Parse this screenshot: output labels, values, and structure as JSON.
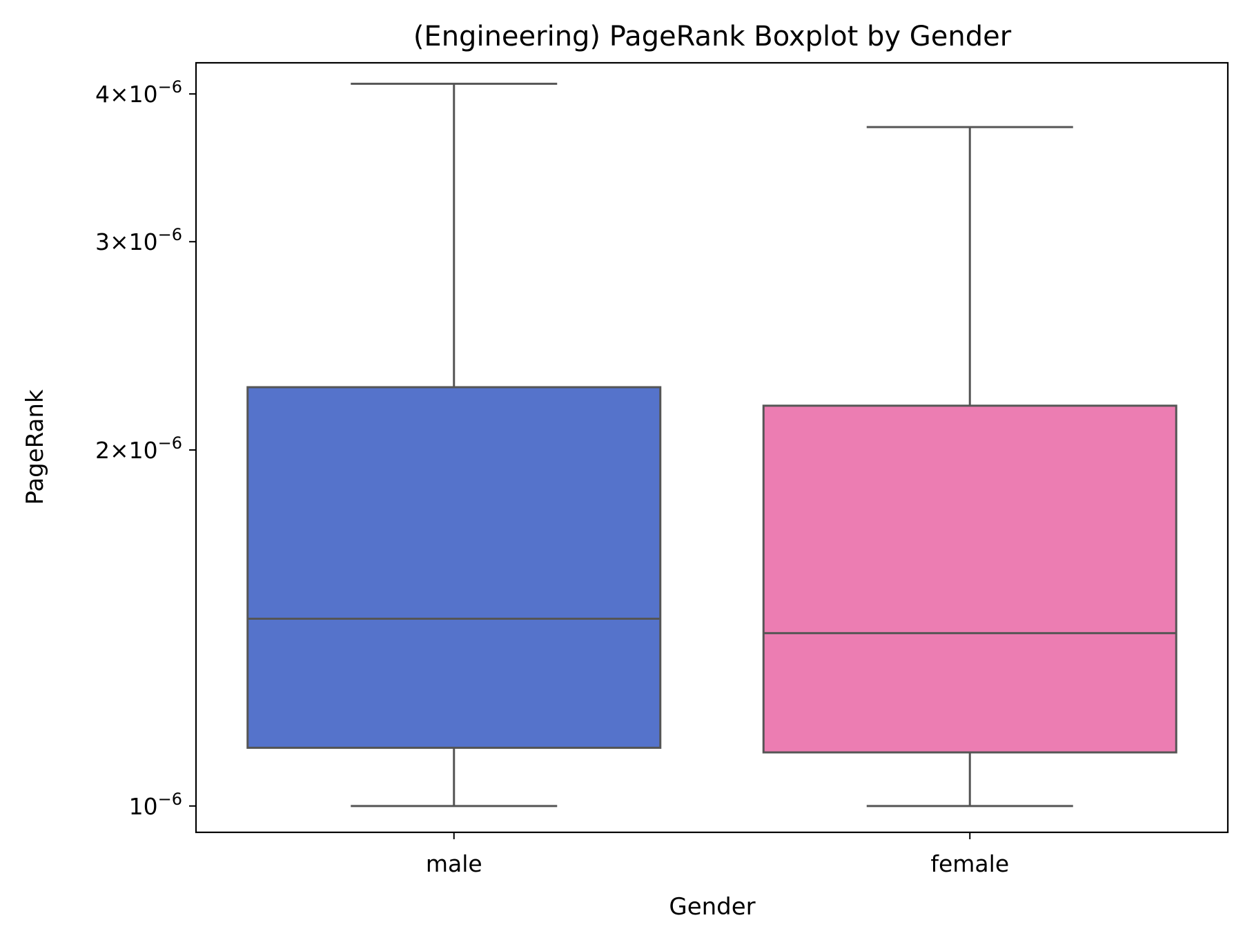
{
  "chart_data": {
    "type": "boxplot",
    "title": "(Engineering) PageRank Boxplot by Gender",
    "xlabel": "Gender",
    "ylabel": "PageRank",
    "yscale": "log",
    "ylim": [
      9.5e-07,
      4.25e-06
    ],
    "yticks": [
      {
        "value": 1e-06,
        "mantissa": "",
        "exp_base": "10",
        "exponent": "−6"
      },
      {
        "value": 2e-06,
        "mantissa": "2",
        "exp_base": "10",
        "exponent": "−6"
      },
      {
        "value": 3e-06,
        "mantissa": "3",
        "exp_base": "10",
        "exponent": "−6"
      },
      {
        "value": 4e-06,
        "mantissa": "4",
        "exp_base": "10",
        "exponent": "−6"
      }
    ],
    "times_symbol": "×",
    "categories": [
      "male",
      "female"
    ],
    "boxes": [
      {
        "category": "male",
        "whisker_low": 1e-06,
        "q1": 1.12e-06,
        "median": 1.44e-06,
        "q3": 2.26e-06,
        "whisker_high": 4.08e-06,
        "color": "#5573cb"
      },
      {
        "category": "female",
        "whisker_low": 1e-06,
        "q1": 1.11e-06,
        "median": 1.4e-06,
        "q3": 2.18e-06,
        "whisker_high": 3.75e-06,
        "color": "#ec7db2"
      }
    ],
    "line_color": "#555555",
    "grid": false,
    "legend": "none"
  }
}
